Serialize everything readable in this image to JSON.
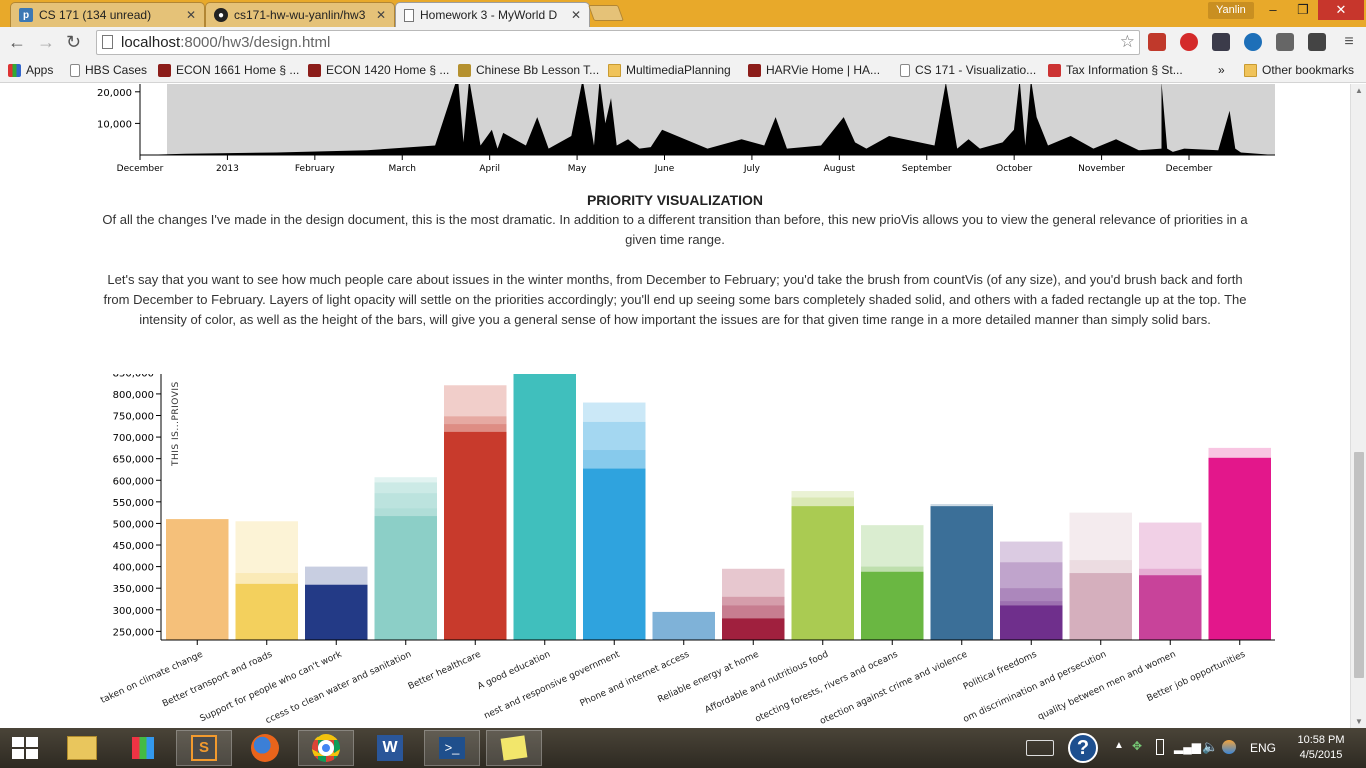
{
  "browser": {
    "tabs": [
      {
        "title": "CS 171 (134 unread)",
        "icon": "p-icon",
        "active": false
      },
      {
        "title": "cs171-hw-wu-yanlin/hw3",
        "icon": "github-icon",
        "active": false
      },
      {
        "title": "Homework 3 - MyWorld D",
        "icon": "page-icon",
        "active": true
      }
    ],
    "user": "Yanlin",
    "window_controls": {
      "minimize": "–",
      "restore": "❐",
      "close": "✕"
    },
    "url_host": "localhost",
    "url_path": ":8000/hw3/design.html",
    "bookmarks": [
      {
        "label": "Apps",
        "icon": "apps-grid-icon"
      },
      {
        "label": "HBS Cases",
        "icon": "page-icon"
      },
      {
        "label": "ECON 1661 Home § ...",
        "icon": "harvard-shield-icon"
      },
      {
        "label": "ECON 1420 Home § ...",
        "icon": "harvard-shield-icon"
      },
      {
        "label": "Chinese Bb Lesson T...",
        "icon": "course-icon"
      },
      {
        "label": "MultimediaPlanning",
        "icon": "folder-icon"
      },
      {
        "label": "HARVie Home | HA...",
        "icon": "harvard-shield-icon"
      },
      {
        "label": "CS 171 - Visualizatio...",
        "icon": "page-icon"
      },
      {
        "label": "Tax Information § St...",
        "icon": "course-icon"
      },
      {
        "label": "»",
        "icon": "chevron-icon"
      },
      {
        "label": "Other bookmarks",
        "icon": "folder-icon"
      }
    ]
  },
  "page": {
    "heading": "PRIORITY VISUALIZATION",
    "para1": "Of all the changes I've made in the design document, this is the most dramatic. In addition to a different transition than before, this new prioVis allows you to view the general relevance of priorities in a given time range.",
    "para2": "Let's say that you want to see how much people care about issues in the winter months, from December to February; you'd take the brush from countVis (of any size), and you'd brush back and forth from December to February. Layers of light opacity will settle on the priorities accordingly; you'll end up seeing some bars completely shaded solid, and others with a faded rectangle up at the top. The intensity of color, as well as the height of the bars, will give you a general sense of how important the issues are for that given time range in a more detailed manner than simply solid bars."
  },
  "chart_data": [
    {
      "type": "area",
      "ylabels": [
        "20,000",
        "10,000"
      ],
      "yticks": [
        20000,
        10000
      ],
      "ylim": [
        0,
        25000
      ],
      "xlabels": [
        "December",
        "2013",
        "February",
        "March",
        "April",
        "May",
        "June",
        "July",
        "August",
        "September",
        "October",
        "November",
        "December"
      ],
      "peaks_note": "",
      "series": [
        {
          "x": [
            0,
            0.04,
            0.12,
            0.2,
            0.26,
            0.28,
            0.285,
            0.29,
            0.3,
            0.31,
            0.315,
            0.32,
            0.33,
            0.34,
            0.35,
            0.36,
            0.38,
            0.39,
            0.4,
            0.405,
            0.41,
            0.415,
            0.42,
            0.43,
            0.44,
            0.45,
            0.46,
            0.5,
            0.53,
            0.55,
            0.56,
            0.57,
            0.6,
            0.62,
            0.63,
            0.64,
            0.66,
            0.7,
            0.71,
            0.72,
            0.73,
            0.74,
            0.76,
            0.77,
            0.775,
            0.78,
            0.785,
            0.79,
            0.8,
            0.82,
            0.84,
            0.86,
            0.88,
            0.9,
            0.9,
            0.905,
            0.91,
            0.92,
            0.95,
            0.96,
            0.965,
            0.97,
            1.0
          ],
          "y": [
            0,
            400,
            800,
            1500,
            3000,
            25000,
            4000,
            24000,
            3000,
            8000,
            2000,
            7000,
            5000,
            3000,
            12000,
            2000,
            6000,
            24000,
            3000,
            24000,
            10000,
            18000,
            3000,
            5000,
            2000,
            2500,
            8000,
            2000,
            5000,
            3000,
            12000,
            2000,
            3000,
            12000,
            4000,
            2000,
            6000,
            3000,
            23000,
            2000,
            5000,
            2000,
            4000,
            8000,
            24000,
            3000,
            24000,
            12000,
            3000,
            6000,
            2000,
            5000,
            1500,
            2000,
            23000,
            2000,
            1000,
            2000,
            1500,
            14000,
            2000,
            800,
            0
          ]
        }
      ]
    },
    {
      "type": "bar",
      "title": "THIS IS...PRIOVIS",
      "ylim": [
        230000,
        860000
      ],
      "yticks": [
        "850,000",
        "800,000",
        "750,000",
        "700,000",
        "650,000",
        "600,000",
        "550,000",
        "500,000",
        "450,000",
        "400,000",
        "350,000",
        "300,000",
        "250,000"
      ],
      "categories": [
        "Action taken on climate change",
        "Better transport and roads",
        "Support for people who can't work",
        "Access to clean water and sanitation",
        "Better healthcare",
        "A good education",
        "An honest and responsive government",
        "Phone and internet access",
        "Reliable energy at home",
        "Affordable and nutritious food",
        "Protecting forests, rivers and oceans",
        "Protection against crime and violence",
        "Political freedoms",
        "Freedom from discrimination and persecution",
        "Equality between men and women",
        "Better job opportunities"
      ],
      "category_labels_shown": [
        "taken on climate change",
        "Better transport and roads",
        "Support for people who can't work",
        "ccess to clean water and sanitation",
        "Better healthcare",
        "A good education",
        "nest and responsive government",
        "Phone and internet access",
        "Reliable energy at home",
        "Affordable and nutritious food",
        "otecting forests, rivers and oceans",
        "otection against crime and violence",
        "Political freedoms",
        "om discrimination and persecution",
        "quality between men and women",
        "Better job opportunities"
      ],
      "colors": [
        "#f5c07a",
        "#f3d05d",
        "#233a86",
        "#8ccfc7",
        "#c83a2c",
        "#40bfbd",
        "#2fa3de",
        "#7fb2d8",
        "#a0203e",
        "#aacb52",
        "#6ab742",
        "#3b6f98",
        "#6f2f8c",
        "#d5afbd",
        "#c8439a",
        "#e3178b"
      ],
      "values": [
        510000,
        360000,
        358000,
        517000,
        712000,
        856000,
        627000,
        295000,
        280000,
        540000,
        388000,
        540000,
        310000,
        385000,
        380000,
        652000
      ],
      "layers": [
        [
          510000
        ],
        [
          505000,
          385000
        ],
        [
          400000
        ],
        [
          607000,
          595000,
          570000,
          535000
        ],
        [
          820000,
          748000,
          730000
        ],
        [
          856000
        ],
        [
          780000,
          735000,
          670000
        ],
        [
          295000
        ],
        [
          395000,
          330000,
          310000
        ],
        [
          575000,
          560000
        ],
        [
          496000,
          400000
        ],
        [
          545000
        ],
        [
          458000,
          410000,
          350000,
          320000
        ],
        [
          525000,
          415000
        ],
        [
          502000,
          395000
        ],
        [
          675000
        ]
      ]
    }
  ],
  "taskbar": {
    "apps": [
      "windows-start-icon",
      "file-explorer-icon",
      "apps-grid-icon",
      "sublime-text-icon",
      "firefox-icon",
      "chrome-icon",
      "word-icon",
      "powershell-icon",
      "sticky-notes-icon"
    ],
    "lang": "ENG",
    "time": "10:58 PM",
    "date": "4/5/2015"
  }
}
